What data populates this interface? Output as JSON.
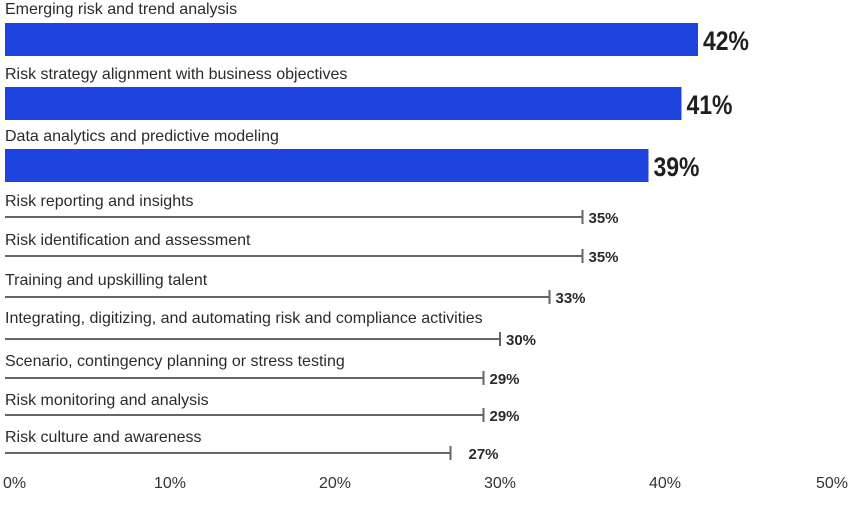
{
  "chart_data": {
    "type": "bar",
    "orientation": "horizontal",
    "title": "",
    "xlabel": "",
    "ylabel": "",
    "xlim": [
      0,
      50
    ],
    "highlight_color": "#1e44e0",
    "line_color": "#666666",
    "categories": [
      "Emerging risk and trend analysis",
      "Risk strategy alignment with business objectives",
      "Data analytics and predictive modeling",
      "Risk reporting and insights",
      "Risk identification and assessment",
      "Training and upskilling talent",
      "Integrating, digitizing, and automating risk and compliance activities",
      "Scenario, contingency planning or stress testing",
      "Risk monitoring and analysis",
      "Risk culture and awareness"
    ],
    "values": [
      42,
      41,
      39,
      35,
      35,
      33,
      30,
      29,
      29,
      27
    ],
    "value_labels": [
      "42%",
      "41%",
      "39%",
      "35%",
      "35%",
      "33%",
      "30%",
      "29%",
      "29%",
      "27%"
    ],
    "highlighted_count": 3,
    "ticks": [
      0,
      10,
      20,
      30,
      40,
      50
    ],
    "tick_labels": [
      "0%",
      "10%",
      "20%",
      "30%",
      "40%",
      "50%"
    ]
  }
}
